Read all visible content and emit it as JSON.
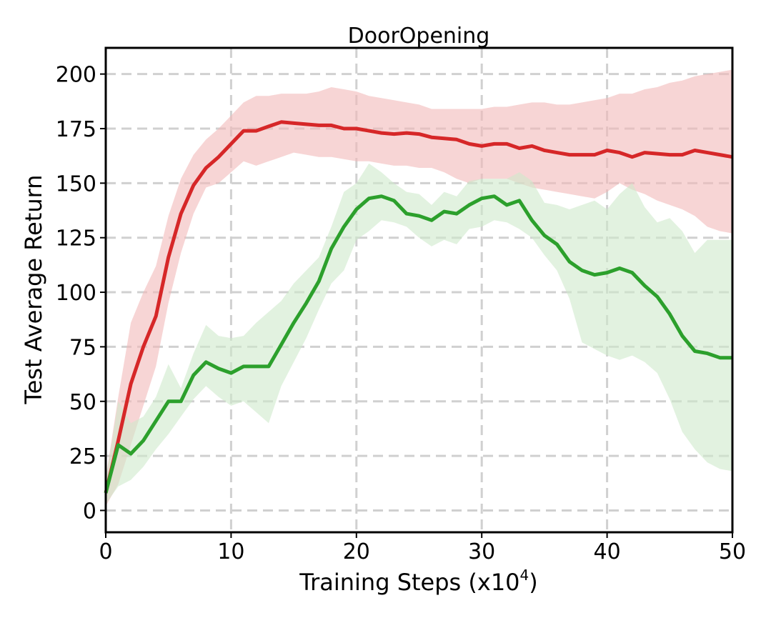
{
  "chart_data": {
    "type": "line",
    "title": "DoorOpening",
    "xlabel": "Training Steps (x10",
    "xlabel_sup": "4",
    "xlabel_end": ")",
    "ylabel": "Test Average Return",
    "xlim": [
      0,
      50
    ],
    "ylim": [
      -10,
      212
    ],
    "xticks": [
      0,
      10,
      20,
      30,
      40,
      50
    ],
    "yticks": [
      0,
      25,
      50,
      75,
      100,
      125,
      150,
      175,
      200
    ],
    "grid": true,
    "series": [
      {
        "color": "#d62728",
        "band_color": "#f2b9b9",
        "x": [
          0,
          1,
          2,
          3,
          4,
          5,
          6,
          7,
          8,
          9,
          10,
          11,
          12,
          13,
          14,
          15,
          16,
          17,
          18,
          19,
          20,
          21,
          22,
          23,
          24,
          25,
          26,
          27,
          28,
          29,
          30,
          31,
          32,
          33,
          34,
          35,
          36,
          37,
          38,
          39,
          40,
          41,
          42,
          43,
          44,
          45,
          46,
          47,
          48,
          49,
          50
        ],
        "mean": [
          8,
          32,
          58,
          75,
          89,
          116,
          136,
          149,
          157,
          162,
          168,
          174,
          174,
          176,
          178,
          177.5,
          177,
          176.5,
          176.5,
          175,
          175,
          174,
          173,
          172.5,
          173,
          172.5,
          171,
          170.5,
          170,
          168,
          167,
          168,
          168,
          166,
          167,
          165,
          164,
          163,
          163,
          163,
          165,
          164,
          162,
          164,
          163.5,
          163,
          163,
          165,
          164,
          163,
          162
        ],
        "lower": [
          2,
          12,
          30,
          48,
          66,
          95,
          118,
          136,
          148,
          150,
          155,
          160,
          158,
          160,
          162,
          164,
          163,
          162,
          162,
          161,
          160,
          160,
          159,
          158,
          158,
          157,
          157,
          155,
          152,
          150,
          152,
          152,
          152,
          150,
          148,
          147,
          146,
          145,
          144,
          143,
          146,
          150,
          147,
          145,
          142,
          140,
          138,
          135,
          130,
          128,
          127
        ],
        "upper": [
          15,
          52,
          86,
          100,
          112,
          135,
          152,
          163,
          170,
          175,
          181,
          187,
          190,
          190,
          191,
          191,
          191,
          192,
          194,
          193,
          192,
          190,
          189,
          188,
          187,
          186,
          184,
          184,
          184,
          184,
          184,
          185,
          185,
          186,
          187,
          187,
          186,
          186,
          187,
          188,
          189,
          191,
          191,
          193,
          194,
          196,
          197,
          199,
          200,
          201,
          202
        ]
      },
      {
        "color": "#2ca02c",
        "band_color": "#cfeacb",
        "x": [
          0,
          1,
          2,
          3,
          4,
          5,
          6,
          7,
          8,
          9,
          10,
          11,
          12,
          13,
          14,
          15,
          16,
          17,
          18,
          19,
          20,
          21,
          22,
          23,
          24,
          25,
          26,
          27,
          28,
          29,
          30,
          31,
          32,
          33,
          34,
          35,
          36,
          37,
          38,
          39,
          40,
          41,
          42,
          43,
          44,
          45,
          46,
          47,
          48,
          49,
          50
        ],
        "mean": [
          8,
          30,
          26,
          32,
          41,
          50,
          50,
          62,
          68,
          65,
          63,
          66,
          66,
          66,
          76,
          86,
          95,
          105,
          120,
          130,
          138,
          143,
          144,
          142,
          136,
          135,
          133,
          137,
          136,
          140,
          143,
          144,
          140,
          142,
          133,
          126,
          122,
          114,
          110,
          108,
          109,
          111,
          109,
          103,
          98,
          90,
          80,
          73,
          72,
          70,
          70
        ],
        "lower": [
          3,
          11,
          14,
          20,
          28,
          35,
          43,
          51,
          57,
          52,
          48,
          50,
          45,
          40,
          57,
          68,
          79,
          92,
          104,
          110,
          124,
          128,
          133,
          132,
          130,
          125,
          121,
          124,
          122,
          129,
          130,
          133,
          132,
          129,
          125,
          117,
          110,
          97,
          77,
          74,
          71,
          69,
          71,
          68,
          63,
          51,
          36,
          28,
          22,
          19,
          18
        ],
        "upper": [
          14,
          50,
          40,
          43,
          52,
          67,
          56,
          72,
          85,
          80,
          79,
          80,
          86,
          91,
          96,
          104,
          110,
          116,
          130,
          146,
          150,
          159,
          155,
          150,
          146,
          145,
          140,
          146,
          144,
          151,
          152,
          152,
          152,
          155,
          151,
          141,
          140,
          138,
          140,
          142,
          138,
          145,
          150,
          139,
          132,
          134,
          128,
          118,
          124,
          124,
          124
        ]
      }
    ]
  }
}
